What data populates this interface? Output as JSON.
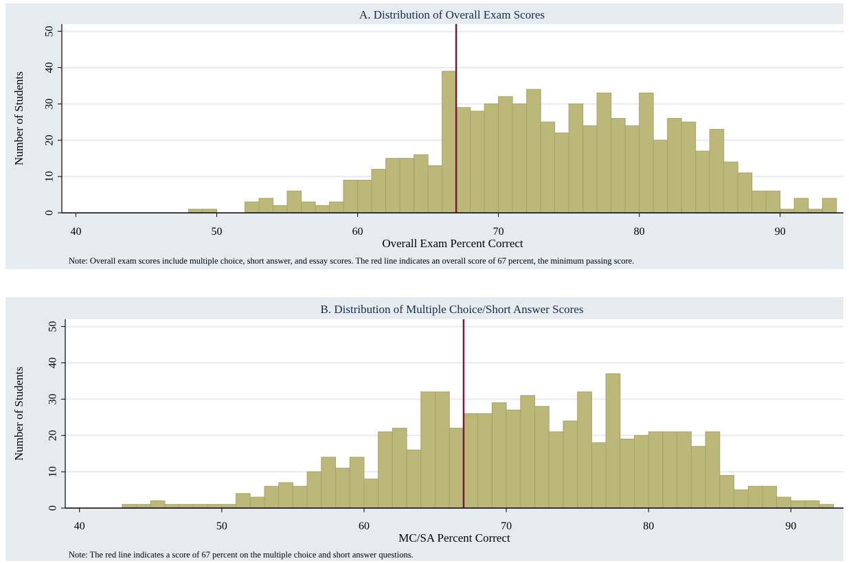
{
  "chart_data": [
    {
      "type": "bar",
      "title": "A. Distribution of Overall Exam Scores",
      "xlabel": "Overall Exam Percent Correct",
      "ylabel": "Number of Students",
      "xlim": [
        39,
        94.5
      ],
      "ylim": [
        0,
        52
      ],
      "xticks": [
        40,
        50,
        60,
        70,
        80,
        90
      ],
      "yticks": [
        0,
        10,
        20,
        30,
        40,
        50
      ],
      "grid": true,
      "bin_width": 1,
      "bins": [
        {
          "x": 48.5,
          "y": 1
        },
        {
          "x": 49.5,
          "y": 1
        },
        {
          "x": 52.5,
          "y": 3
        },
        {
          "x": 53.5,
          "y": 4
        },
        {
          "x": 54.5,
          "y": 2
        },
        {
          "x": 55.5,
          "y": 6
        },
        {
          "x": 56.5,
          "y": 3
        },
        {
          "x": 57.5,
          "y": 2
        },
        {
          "x": 58.5,
          "y": 3
        },
        {
          "x": 59.5,
          "y": 9
        },
        {
          "x": 60.5,
          "y": 9
        },
        {
          "x": 61.5,
          "y": 12
        },
        {
          "x": 62.5,
          "y": 15
        },
        {
          "x": 63.5,
          "y": 15
        },
        {
          "x": 64.5,
          "y": 16
        },
        {
          "x": 65.5,
          "y": 13
        },
        {
          "x": 66.5,
          "y": 39
        },
        {
          "x": 67.5,
          "y": 29
        },
        {
          "x": 68.5,
          "y": 28
        },
        {
          "x": 69.5,
          "y": 30
        },
        {
          "x": 70.5,
          "y": 32
        },
        {
          "x": 71.5,
          "y": 30
        },
        {
          "x": 72.5,
          "y": 34
        },
        {
          "x": 73.5,
          "y": 25
        },
        {
          "x": 74.5,
          "y": 22
        },
        {
          "x": 75.5,
          "y": 30
        },
        {
          "x": 76.5,
          "y": 24
        },
        {
          "x": 77.5,
          "y": 33
        },
        {
          "x": 78.5,
          "y": 26
        },
        {
          "x": 79.5,
          "y": 24
        },
        {
          "x": 80.5,
          "y": 33
        },
        {
          "x": 81.5,
          "y": 20
        },
        {
          "x": 82.5,
          "y": 26
        },
        {
          "x": 83.5,
          "y": 25
        },
        {
          "x": 84.5,
          "y": 17
        },
        {
          "x": 85.5,
          "y": 23
        },
        {
          "x": 86.5,
          "y": 14
        },
        {
          "x": 87.5,
          "y": 11
        },
        {
          "x": 88.5,
          "y": 6
        },
        {
          "x": 89.5,
          "y": 6
        },
        {
          "x": 90.5,
          "y": 1
        },
        {
          "x": 91.5,
          "y": 4
        },
        {
          "x": 92.5,
          "y": 1
        },
        {
          "x": 93.5,
          "y": 4
        }
      ],
      "reference_line": {
        "x": 67,
        "color": "#7b1a34"
      },
      "note": "Note: Overall exam scores include multiple choice, short answer, and essay scores. The red line indicates an overall score of 67 percent, the minimum passing score."
    },
    {
      "type": "bar",
      "title": "B. Distribution of Multiple Choice/Short Answer Scores",
      "xlabel": "MC/SA Percent Correct",
      "ylabel": "Number of Students",
      "xlim": [
        39,
        93.7
      ],
      "ylim": [
        0,
        52
      ],
      "xticks": [
        40,
        50,
        60,
        70,
        80,
        90
      ],
      "yticks": [
        0,
        10,
        20,
        30,
        40,
        50
      ],
      "grid": true,
      "bin_width": 1,
      "bins": [
        {
          "x": 43.5,
          "y": 1
        },
        {
          "x": 44.5,
          "y": 1
        },
        {
          "x": 45.5,
          "y": 2
        },
        {
          "x": 46.5,
          "y": 1
        },
        {
          "x": 47.5,
          "y": 1
        },
        {
          "x": 48.5,
          "y": 1
        },
        {
          "x": 49.5,
          "y": 1
        },
        {
          "x": 50.5,
          "y": 1
        },
        {
          "x": 51.5,
          "y": 4
        },
        {
          "x": 52.5,
          "y": 3
        },
        {
          "x": 53.5,
          "y": 6
        },
        {
          "x": 54.5,
          "y": 7
        },
        {
          "x": 55.5,
          "y": 6
        },
        {
          "x": 56.5,
          "y": 10
        },
        {
          "x": 57.5,
          "y": 14
        },
        {
          "x": 58.5,
          "y": 11
        },
        {
          "x": 59.5,
          "y": 14
        },
        {
          "x": 60.5,
          "y": 8
        },
        {
          "x": 61.5,
          "y": 21
        },
        {
          "x": 62.5,
          "y": 22
        },
        {
          "x": 63.5,
          "y": 16
        },
        {
          "x": 64.5,
          "y": 32
        },
        {
          "x": 65.5,
          "y": 32
        },
        {
          "x": 66.5,
          "y": 22
        },
        {
          "x": 67.5,
          "y": 26
        },
        {
          "x": 68.5,
          "y": 26
        },
        {
          "x": 69.5,
          "y": 29
        },
        {
          "x": 70.5,
          "y": 27
        },
        {
          "x": 71.5,
          "y": 31
        },
        {
          "x": 72.5,
          "y": 28
        },
        {
          "x": 73.5,
          "y": 21
        },
        {
          "x": 74.5,
          "y": 24
        },
        {
          "x": 75.5,
          "y": 32
        },
        {
          "x": 76.5,
          "y": 18
        },
        {
          "x": 77.5,
          "y": 37
        },
        {
          "x": 78.5,
          "y": 19
        },
        {
          "x": 79.5,
          "y": 20
        },
        {
          "x": 80.5,
          "y": 21
        },
        {
          "x": 81.5,
          "y": 21
        },
        {
          "x": 82.5,
          "y": 21
        },
        {
          "x": 83.5,
          "y": 17
        },
        {
          "x": 84.5,
          "y": 21
        },
        {
          "x": 85.5,
          "y": 9
        },
        {
          "x": 86.5,
          "y": 5
        },
        {
          "x": 87.5,
          "y": 6
        },
        {
          "x": 88.5,
          "y": 6
        },
        {
          "x": 89.5,
          "y": 3
        },
        {
          "x": 90.5,
          "y": 2
        },
        {
          "x": 91.5,
          "y": 2
        },
        {
          "x": 92.5,
          "y": 1
        }
      ],
      "reference_line": {
        "x": 67,
        "color": "#7b1a34"
      },
      "note": "Note: The red line indicates a score of 67 percent on the multiple choice and short answer questions."
    }
  ],
  "style": {
    "outer_background": "#e6ebef",
    "plot_background": "#ffffff",
    "gridline_color": "#e6ebef",
    "bar_fill": "#bcb87a",
    "bar_stroke": "#a8a26a",
    "axis_color": "#000000"
  }
}
